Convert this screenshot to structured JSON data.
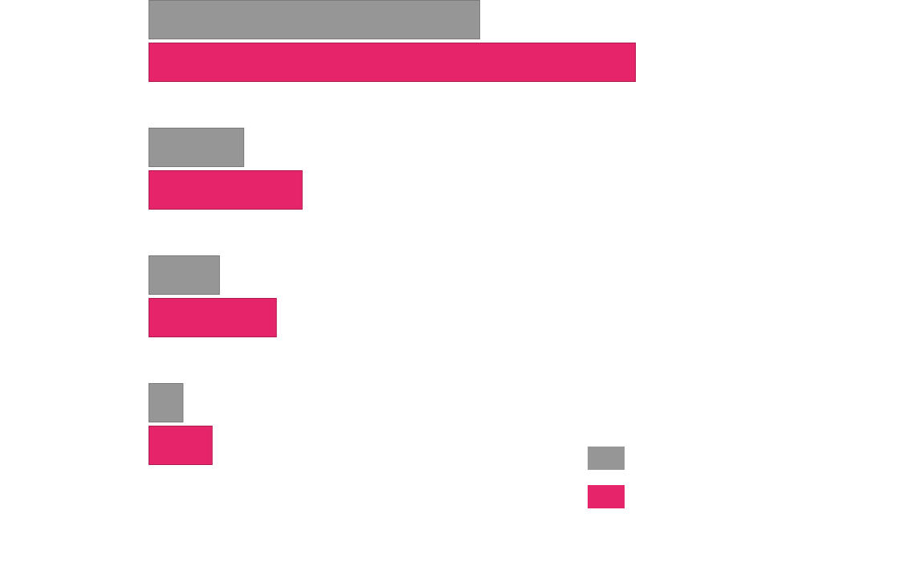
{
  "chart_data": {
    "type": "bar",
    "orientation": "horizontal",
    "title": "",
    "xlabel": "",
    "ylabel": "",
    "categories": [
      "",
      "",
      "",
      ""
    ],
    "series": [
      {
        "color": "#969696",
        "values": [
          68,
          19.5,
          14.5,
          7
        ]
      },
      {
        "color": "#e6246a",
        "values": [
          100,
          31.5,
          26.2,
          13
        ]
      }
    ],
    "xlim": [
      0,
      100
    ],
    "grid": false,
    "axes_visible": false,
    "legend": {
      "placement": "bottom-right",
      "entries": [
        "",
        ""
      ]
    }
  }
}
